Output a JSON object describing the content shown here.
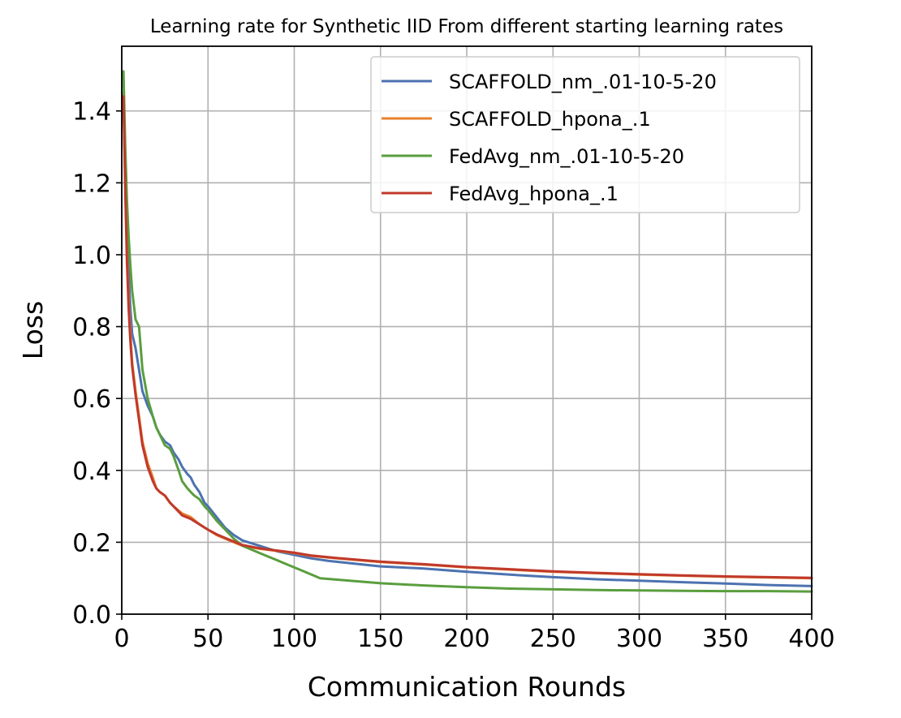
{
  "chart_data": {
    "type": "line",
    "title": "Learning rate for Synthetic IID From different starting learning rates",
    "xlabel": "Communication Rounds",
    "ylabel": "Loss",
    "xlim": [
      0,
      400
    ],
    "ylim": [
      0,
      1.58
    ],
    "xticks": [
      0,
      50,
      100,
      150,
      200,
      250,
      300,
      350,
      400
    ],
    "yticks": [
      0.0,
      0.2,
      0.4,
      0.6,
      0.8,
      1.0,
      1.2,
      1.4
    ],
    "xtick_labels": [
      "0",
      "50",
      "100",
      "150",
      "200",
      "250",
      "300",
      "350",
      "400"
    ],
    "ytick_labels": [
      "0.0",
      "0.2",
      "0.4",
      "0.6",
      "0.8",
      "1.0",
      "1.2",
      "1.4"
    ],
    "grid": true,
    "legend_position": "top-right",
    "series": [
      {
        "name": "SCAFFOLD_nm_.01-10-5-20",
        "color": "#4c72b0",
        "x": [
          1,
          2,
          3,
          4,
          5,
          6,
          8,
          10,
          12,
          15,
          18,
          20,
          22,
          25,
          28,
          30,
          33,
          35,
          38,
          40,
          42,
          45,
          48,
          50,
          55,
          60,
          65,
          70,
          80,
          90,
          100,
          110,
          120,
          130,
          140,
          150,
          175,
          200,
          225,
          250,
          275,
          300,
          325,
          350,
          375,
          400
        ],
        "y": [
          1.44,
          1.25,
          1.05,
          0.95,
          0.85,
          0.78,
          0.74,
          0.68,
          0.62,
          0.58,
          0.55,
          0.52,
          0.5,
          0.48,
          0.47,
          0.45,
          0.43,
          0.41,
          0.39,
          0.38,
          0.36,
          0.34,
          0.31,
          0.3,
          0.27,
          0.24,
          0.22,
          0.205,
          0.19,
          0.175,
          0.165,
          0.155,
          0.148,
          0.143,
          0.138,
          0.133,
          0.127,
          0.118,
          0.11,
          0.103,
          0.097,
          0.093,
          0.089,
          0.085,
          0.081,
          0.078
        ]
      },
      {
        "name": "SCAFFOLD_hpona_.1",
        "color": "#e8812c",
        "x": [
          1,
          2,
          3,
          4,
          5,
          6,
          8,
          10,
          12,
          15,
          18,
          20,
          22,
          25,
          28,
          30,
          35,
          40,
          45,
          50,
          55,
          60,
          65,
          70,
          80,
          90,
          100,
          110,
          125,
          150,
          175,
          200,
          225,
          250,
          275,
          300,
          325,
          350,
          375,
          400
        ],
        "y": [
          1.45,
          1.2,
          1.0,
          0.87,
          0.78,
          0.7,
          0.62,
          0.55,
          0.48,
          0.42,
          0.38,
          0.35,
          0.34,
          0.33,
          0.31,
          0.3,
          0.28,
          0.27,
          0.25,
          0.235,
          0.22,
          0.21,
          0.2,
          0.19,
          0.182,
          0.176,
          0.17,
          0.162,
          0.155,
          0.145,
          0.138,
          0.13,
          0.124,
          0.118,
          0.114,
          0.11,
          0.107,
          0.104,
          0.102,
          0.1
        ]
      },
      {
        "name": "FedAvg_nm_.01-10-5-20",
        "color": "#5a9e3e",
        "x": [
          1,
          2,
          3,
          4,
          5,
          6,
          7,
          8,
          10,
          12,
          15,
          18,
          20,
          22,
          25,
          28,
          30,
          33,
          35,
          38,
          40,
          42,
          45,
          48,
          50,
          55,
          60,
          65,
          70,
          75,
          80,
          85,
          90,
          95,
          100,
          105,
          110,
          115,
          120,
          130,
          140,
          150,
          175,
          200,
          225,
          250,
          275,
          300,
          325,
          350,
          375,
          400
        ],
        "y": [
          1.51,
          1.3,
          1.15,
          1.05,
          0.97,
          0.9,
          0.86,
          0.82,
          0.8,
          0.68,
          0.6,
          0.55,
          0.52,
          0.5,
          0.47,
          0.46,
          0.44,
          0.4,
          0.37,
          0.35,
          0.34,
          0.33,
          0.32,
          0.3,
          0.29,
          0.26,
          0.235,
          0.21,
          0.19,
          0.18,
          0.17,
          0.16,
          0.15,
          0.14,
          0.13,
          0.12,
          0.11,
          0.1,
          0.098,
          0.094,
          0.09,
          0.086,
          0.08,
          0.075,
          0.071,
          0.069,
          0.067,
          0.066,
          0.065,
          0.064,
          0.064,
          0.063
        ]
      },
      {
        "name": "FedAvg_hpona_.1",
        "color": "#c0392b",
        "x": [
          1,
          2,
          3,
          4,
          5,
          6,
          8,
          10,
          12,
          15,
          18,
          20,
          22,
          25,
          28,
          30,
          35,
          40,
          45,
          50,
          55,
          60,
          65,
          70,
          80,
          90,
          100,
          110,
          125,
          150,
          175,
          200,
          225,
          250,
          275,
          300,
          325,
          350,
          375,
          400
        ],
        "y": [
          1.44,
          1.18,
          0.98,
          0.85,
          0.76,
          0.69,
          0.61,
          0.54,
          0.47,
          0.41,
          0.37,
          0.35,
          0.34,
          0.33,
          0.31,
          0.3,
          0.275,
          0.265,
          0.25,
          0.235,
          0.222,
          0.212,
          0.202,
          0.192,
          0.183,
          0.177,
          0.171,
          0.163,
          0.156,
          0.146,
          0.139,
          0.131,
          0.125,
          0.119,
          0.115,
          0.111,
          0.108,
          0.105,
          0.103,
          0.101
        ]
      }
    ]
  }
}
